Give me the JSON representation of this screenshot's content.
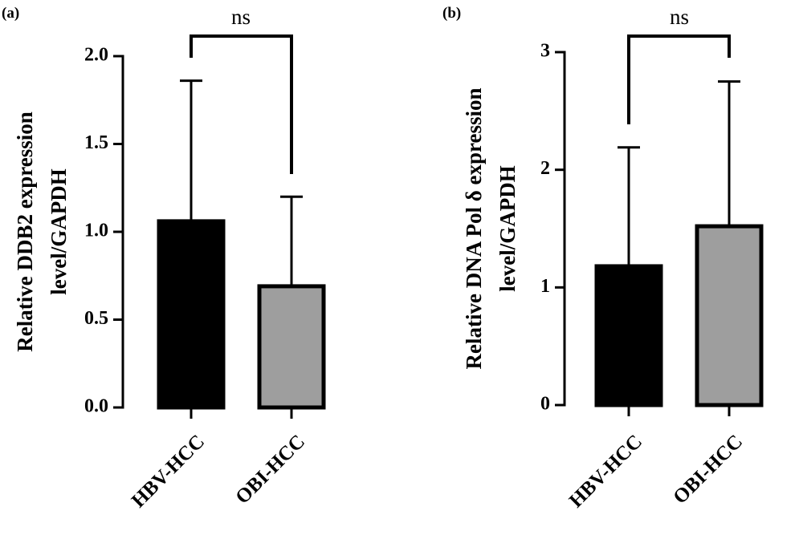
{
  "chart_data": [
    {
      "panel": "(a)",
      "type": "bar",
      "categories": [
        "HBV-HCC",
        "OBI-HCC"
      ],
      "values": [
        1.06,
        0.69
      ],
      "errors": [
        0.8,
        0.51
      ],
      "colors": [
        "#000000",
        "#9e9e9e"
      ],
      "ylabel": [
        "Relative DDB2 expression",
        "level/GAPDH"
      ],
      "ylim": [
        0,
        2.0
      ],
      "yticks": [
        "0.0",
        "0.5",
        "1.0",
        "1.5",
        "2.0"
      ],
      "significance": "ns"
    },
    {
      "panel": "(b)",
      "type": "bar",
      "categories": [
        "HBV-HCC",
        "OBI-HCC"
      ],
      "values": [
        1.18,
        1.52
      ],
      "errors": [
        1.01,
        1.23
      ],
      "colors": [
        "#000000",
        "#9e9e9e"
      ],
      "ylabel": [
        "Relative DNA Pol δ expression",
        "level/GAPDH"
      ],
      "ylim": [
        0,
        3
      ],
      "yticks": [
        "0",
        "1",
        "2",
        "3"
      ],
      "significance": "ns"
    }
  ]
}
